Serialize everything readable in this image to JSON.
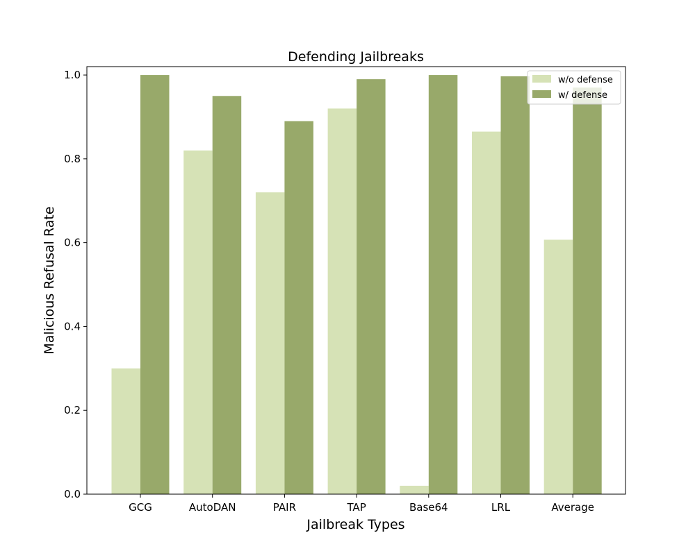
{
  "chart_data": {
    "type": "bar",
    "title": "Defending Jailbreaks",
    "xlabel": "Jailbreak Types",
    "ylabel": "Malicious Refusal Rate",
    "categories": [
      "GCG",
      "AutoDAN",
      "PAIR",
      "TAP",
      "Base64",
      "LRL",
      "Average"
    ],
    "series": [
      {
        "name": "w/o defense",
        "color": "#d6e2b6",
        "values": [
          0.3,
          0.82,
          0.72,
          0.92,
          0.02,
          0.865,
          0.607
        ]
      },
      {
        "name": "w/ defense",
        "color": "#98a96a",
        "values": [
          1.0,
          0.95,
          0.89,
          0.99,
          1.0,
          0.997,
          0.97
        ]
      }
    ],
    "ylim": [
      0,
      1.02
    ],
    "yticks": [
      "0.0",
      "0.2",
      "0.4",
      "0.6",
      "0.8",
      "1.0"
    ],
    "ytick_values": [
      0.0,
      0.2,
      0.4,
      0.6,
      0.8,
      1.0
    ],
    "legend_position": "top-right",
    "grid": false
  }
}
